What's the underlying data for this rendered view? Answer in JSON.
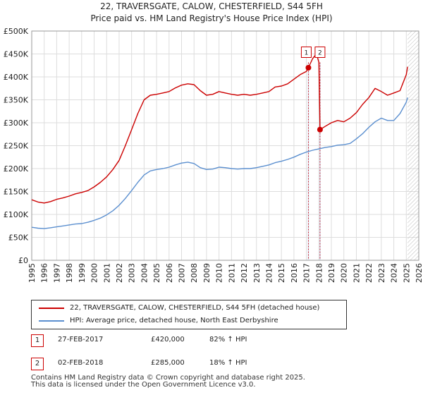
{
  "chart_data": {
    "type": "line",
    "title": "22, TRAVERSGATE, CALOW, CHESTERFIELD, S44 5FH",
    "subtitle": "Price paid vs. HM Land Registry's House Price Index (HPI)",
    "xlim": [
      1995,
      2026
    ],
    "ylim": [
      0,
      500000
    ],
    "x_ticks": [
      "1995",
      "1996",
      "1997",
      "1998",
      "1999",
      "2000",
      "2001",
      "2002",
      "2003",
      "2004",
      "2005",
      "2006",
      "2007",
      "2008",
      "2009",
      "2010",
      "2011",
      "2012",
      "2013",
      "2014",
      "2015",
      "2016",
      "2017",
      "2018",
      "2019",
      "2020",
      "2021",
      "2022",
      "2023",
      "2024",
      "2025",
      "2026"
    ],
    "y_ticks": [
      {
        "value": 0,
        "label": "£0"
      },
      {
        "value": 50000,
        "label": "£50K"
      },
      {
        "value": 100000,
        "label": "£100K"
      },
      {
        "value": 150000,
        "label": "£150K"
      },
      {
        "value": 200000,
        "label": "£200K"
      },
      {
        "value": 250000,
        "label": "£250K"
      },
      {
        "value": 300000,
        "label": "£300K"
      },
      {
        "value": 350000,
        "label": "£350K"
      },
      {
        "value": 400000,
        "label": "£400K"
      },
      {
        "value": 450000,
        "label": "£450K"
      },
      {
        "value": 500000,
        "label": "£500K"
      }
    ],
    "grid": true,
    "projection_start": 2025.1,
    "series": [
      {
        "name": "22, TRAVERSGATE, CALOW, CHESTERFIELD, S44 5FH (detached house)",
        "color": "#cc0000",
        "x": [
          1995.0,
          1995.5,
          1996.0,
          1996.5,
          1997.0,
          1997.5,
          1998.0,
          1998.5,
          1999.0,
          1999.5,
          2000.0,
          2000.5,
          2001.0,
          2001.5,
          2002.0,
          2002.5,
          2003.0,
          2003.5,
          2004.0,
          2004.5,
          2005.0,
          2005.5,
          2006.0,
          2006.5,
          2007.0,
          2007.5,
          2008.0,
          2008.5,
          2009.0,
          2009.5,
          2010.0,
          2010.5,
          2011.0,
          2011.5,
          2012.0,
          2012.5,
          2013.0,
          2013.5,
          2014.0,
          2014.5,
          2015.0,
          2015.5,
          2016.0,
          2016.5,
          2017.0,
          2017.16,
          2017.5,
          2017.8,
          2018.0,
          2018.09,
          2018.5,
          2019.0,
          2019.5,
          2020.0,
          2020.5,
          2021.0,
          2021.5,
          2022.0,
          2022.5,
          2023.0,
          2023.5,
          2024.0,
          2024.5,
          2025.0,
          2025.1
        ],
        "values": [
          132000,
          127000,
          125000,
          128000,
          133000,
          136000,
          140000,
          145000,
          148000,
          152000,
          160000,
          170000,
          182000,
          198000,
          218000,
          250000,
          285000,
          320000,
          350000,
          360000,
          362000,
          365000,
          368000,
          376000,
          382000,
          385000,
          383000,
          370000,
          360000,
          362000,
          368000,
          365000,
          362000,
          360000,
          362000,
          360000,
          362000,
          365000,
          368000,
          378000,
          380000,
          385000,
          395000,
          405000,
          412000,
          420000,
          440000,
          450000,
          432000,
          285000,
          292000,
          300000,
          305000,
          302000,
          310000,
          322000,
          340000,
          355000,
          375000,
          368000,
          360000,
          365000,
          370000,
          405000,
          422000
        ]
      },
      {
        "name": "HPI: Average price, detached house, North East Derbyshire",
        "color": "#5b8fcf",
        "x": [
          1995.0,
          1995.5,
          1996.0,
          1996.5,
          1997.0,
          1997.5,
          1998.0,
          1998.5,
          1999.0,
          1999.5,
          2000.0,
          2000.5,
          2001.0,
          2001.5,
          2002.0,
          2002.5,
          2003.0,
          2003.5,
          2004.0,
          2004.5,
          2005.0,
          2005.5,
          2006.0,
          2006.5,
          2007.0,
          2007.5,
          2008.0,
          2008.5,
          2009.0,
          2009.5,
          2010.0,
          2010.5,
          2011.0,
          2011.5,
          2012.0,
          2012.5,
          2013.0,
          2013.5,
          2014.0,
          2014.5,
          2015.0,
          2015.5,
          2016.0,
          2016.5,
          2017.0,
          2017.5,
          2018.0,
          2018.5,
          2019.0,
          2019.5,
          2020.0,
          2020.5,
          2021.0,
          2021.5,
          2022.0,
          2022.5,
          2023.0,
          2023.5,
          2024.0,
          2024.5,
          2025.0,
          2025.1
        ],
        "values": [
          72000,
          70000,
          69000,
          71000,
          73000,
          75000,
          77000,
          79000,
          80000,
          83000,
          87000,
          92000,
          99000,
          108000,
          120000,
          135000,
          152000,
          170000,
          186000,
          195000,
          198000,
          200000,
          203000,
          208000,
          212000,
          214000,
          211000,
          202000,
          198000,
          199000,
          203000,
          202000,
          200000,
          199000,
          200000,
          200000,
          202000,
          205000,
          208000,
          213000,
          216000,
          220000,
          225000,
          231000,
          236000,
          240000,
          243000,
          246000,
          248000,
          251000,
          252000,
          255000,
          265000,
          276000,
          290000,
          302000,
          310000,
          305000,
          305000,
          320000,
          345000,
          355000
        ]
      }
    ],
    "sales": [
      {
        "marker": "1",
        "date": "27-FEB-2017",
        "price": "£420,000",
        "delta": "82% ↑ HPI",
        "x": 2017.16,
        "y": 420000
      },
      {
        "marker": "2",
        "date": "02-FEB-2018",
        "price": "£285,000",
        "delta": "18% ↑ HPI",
        "x": 2018.09,
        "y": 285000
      }
    ]
  },
  "legend": {
    "property_label": "22, TRAVERSGATE, CALOW, CHESTERFIELD, S44 5FH (detached house)",
    "hpi_label": "HPI: Average price, detached house, North East Derbyshire"
  },
  "colors": {
    "property": "#cc0000",
    "hpi": "#5b8fcf",
    "marker_band": "#dde6f5"
  },
  "footer": {
    "line1": "Contains HM Land Registry data © Crown copyright and database right 2025.",
    "line2": "This data is licensed under the Open Government Licence v3.0."
  }
}
